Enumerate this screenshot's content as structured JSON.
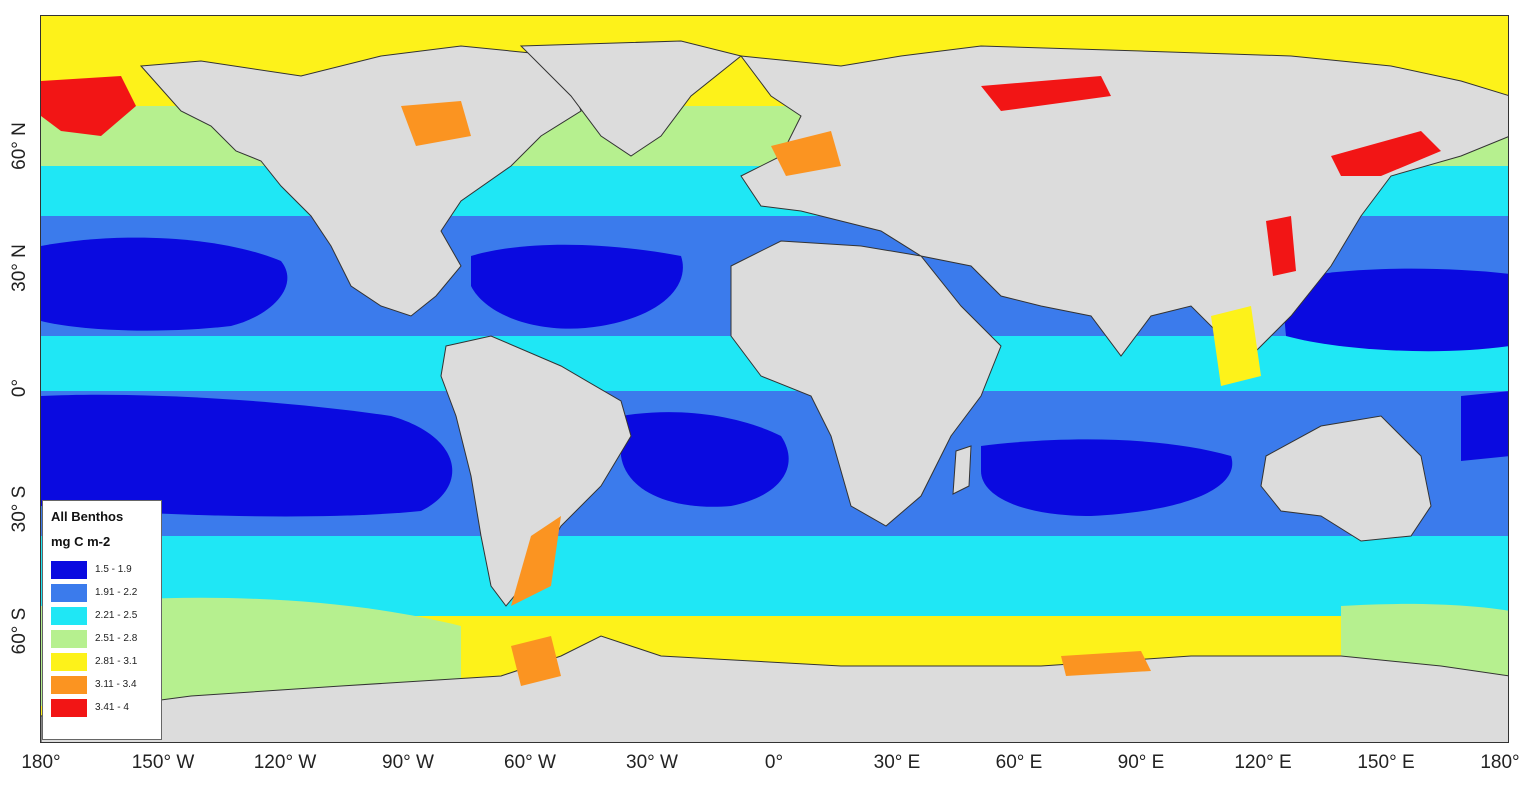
{
  "map": {
    "ocean_colors": {
      "c1": "#0a0ae0",
      "c2": "#3b7bec",
      "c3": "#1fe7f5",
      "c4": "#b6f08f",
      "c5": "#fdf21a",
      "c6": "#fb9421",
      "c7": "#f21515",
      "land": "#dcdcdc"
    },
    "x_ticks": [
      "180°",
      "150° W",
      "120° W",
      "90° W",
      "60° W",
      "30° W",
      "0°",
      "30° E",
      "60° E",
      "90° E",
      "120° E",
      "150° E",
      "180°"
    ],
    "y_ticks": [
      "60° N",
      "30° N",
      "0°",
      "30° S",
      "60° S"
    ]
  },
  "legend": {
    "title": "All Benthos",
    "units": "mg C m-2",
    "items": [
      {
        "label": "1.5 - 1.9",
        "color": "#0a0ae0"
      },
      {
        "label": "1.91 - 2.2",
        "color": "#3b7bec"
      },
      {
        "label": "2.21 - 2.5",
        "color": "#1fe7f5"
      },
      {
        "label": "2.51 - 2.8",
        "color": "#b6f08f"
      },
      {
        "label": "2.81 - 3.1",
        "color": "#fdf21a"
      },
      {
        "label": "3.11 - 3.4",
        "color": "#fb9421"
      },
      {
        "label": "3.41 - 4",
        "color": "#f21515"
      }
    ]
  }
}
